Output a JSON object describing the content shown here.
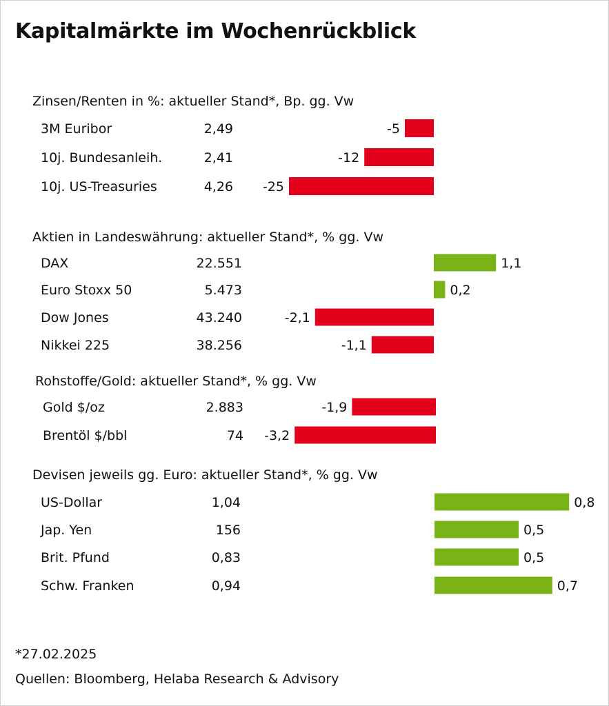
{
  "title": "Kapitalmärkte im Wochenrückblick",
  "colors": {
    "negative": "#e2001a",
    "positive": "#7ab317"
  },
  "chart_data": {
    "type": "bar",
    "orientation": "horizontal",
    "groups": [
      {
        "heading": "Zinsen/Renten in %: aktueller Stand*, Bp. gg. Vw",
        "unit": "bp",
        "rows": [
          {
            "label": "3M Euribor",
            "level": "2,49",
            "change": -5,
            "change_label": "-5"
          },
          {
            "label": "10j. Bundesanleih.",
            "level": "2,41",
            "change": -12,
            "change_label": "-12"
          },
          {
            "label": "10j. US-Treasuries",
            "level": "4,26",
            "change": -25,
            "change_label": "-25"
          }
        ]
      },
      {
        "heading": "Aktien in Landeswährung: aktueller Stand*, % gg. Vw",
        "unit": "%",
        "rows": [
          {
            "label": "DAX",
            "level": "22.551",
            "change": 1.1,
            "change_label": "1,1"
          },
          {
            "label": "Euro Stoxx 50",
            "level": "5.473",
            "change": 0.2,
            "change_label": "0,2"
          },
          {
            "label": "Dow Jones",
            "level": "43.240",
            "change": -2.1,
            "change_label": "-2,1"
          },
          {
            "label": "Nikkei 225",
            "level": "38.256",
            "change": -1.1,
            "change_label": "-1,1"
          }
        ]
      },
      {
        "heading": "Rohstoffe/Gold: aktueller Stand*, % gg. Vw",
        "unit": "%",
        "rows": [
          {
            "label": "Gold $/oz",
            "level": "2.883",
            "change": -1.9,
            "change_label": "-1,9"
          },
          {
            "label": "Brentöl $/bbl",
            "level": "74",
            "change": -3.2,
            "change_label": "-3,2"
          }
        ]
      },
      {
        "heading": "Devisen jeweils gg. Euro: aktueller Stand*, % gg. Vw",
        "unit": "%",
        "rows": [
          {
            "label": "US-Dollar",
            "level": "1,04",
            "change": 0.8,
            "change_label": "0,8"
          },
          {
            "label": "Jap. Yen",
            "level": "156",
            "change": 0.5,
            "change_label": "0,5"
          },
          {
            "label": "Brit. Pfund",
            "level": "0,83",
            "change": 0.5,
            "change_label": "0,5"
          },
          {
            "label": "Schw. Franken",
            "level": "0,94",
            "change": 0.7,
            "change_label": "0,7"
          }
        ]
      }
    ]
  },
  "footnote": "*27.02.2025",
  "source": "Quellen: Bloomberg, Helaba Research & Advisory"
}
